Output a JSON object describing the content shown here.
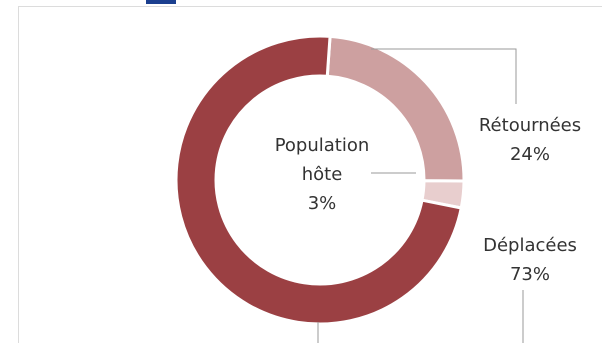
{
  "chart_data": {
    "type": "pie",
    "donut": true,
    "slices": [
      {
        "label": "Retournées",
        "label_display": "Rétournées",
        "value": 24,
        "value_text": "24%",
        "color": "#cda0a0"
      },
      {
        "label": "Population hôte",
        "label_lines": [
          "Population",
          "hôte"
        ],
        "value": 3,
        "value_text": "3%",
        "color": "#e8cece"
      },
      {
        "label": "Déplacées",
        "label_display": "Déplacées",
        "value": 73,
        "value_text": "73%",
        "color": "#9b4043"
      }
    ]
  }
}
